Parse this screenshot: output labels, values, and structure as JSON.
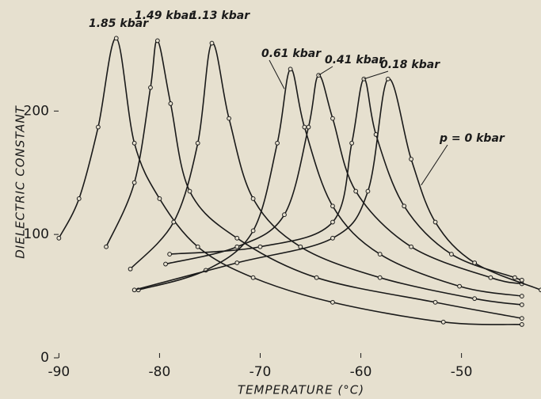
{
  "chart_data": {
    "type": "line",
    "x_label": "TEMPERATURE (°C)",
    "y_label": "DIELECTRIC CONSTANT",
    "xlim": [
      -90.5,
      -42.1
    ],
    "ylim": [
      0,
      290
    ],
    "xticks": [
      -90,
      -80,
      -70,
      -60,
      -50
    ],
    "yticks": [
      0,
      100,
      200
    ],
    "color": "#1a1a1a",
    "series": [
      {
        "name": "1.85 kbar",
        "x": [
          -90,
          -88,
          -86.1,
          -84.3,
          -82.5,
          -80,
          -76.2,
          -70.7,
          -62.8,
          -51.8,
          -44
        ],
        "values": [
          97,
          129,
          187,
          259,
          174,
          129,
          90,
          65,
          45,
          29,
          27
        ]
      },
      {
        "name": "1.49 kbar",
        "x": [
          -85.3,
          -82.5,
          -80.9,
          -80.2,
          -78.9,
          -77,
          -72.3,
          -64.4,
          -52.6,
          -44
        ],
        "values": [
          90,
          142,
          219,
          257,
          206,
          135,
          97,
          65,
          45,
          32
        ]
      },
      {
        "name": "1.13 kbar",
        "x": [
          -82.9,
          -78.6,
          -76.2,
          -74.8,
          -73.1,
          -70.7,
          -66,
          -58.1,
          -48.7,
          -44
        ],
        "values": [
          72,
          110,
          174,
          255,
          194,
          129,
          90,
          65,
          48,
          43
        ]
      },
      {
        "name": "0.61 kbar",
        "x": [
          -82.1,
          -75.4,
          -70.7,
          -68.3,
          -67,
          -65.6,
          -62.8,
          -58.1,
          -50.2,
          -44
        ],
        "values": [
          55,
          71,
          103,
          174,
          234,
          187,
          123,
          84,
          58,
          50
        ]
      },
      {
        "name": "0.41 kbar",
        "x": [
          -79.4,
          -72.3,
          -67.6,
          -65.2,
          -64.2,
          -62.8,
          -60.5,
          -55,
          -47.1,
          -44
        ],
        "values": [
          76,
          90,
          116,
          187,
          229,
          194,
          135,
          90,
          65,
          60
        ]
      },
      {
        "name": "0.18 kbar",
        "x": [
          -79,
          -70,
          -62.8,
          -60.9,
          -59.7,
          -58.5,
          -55.7,
          -51,
          -44.7,
          -44
        ],
        "values": [
          84,
          90,
          110,
          174,
          226,
          181,
          123,
          84,
          65,
          63
        ]
      },
      {
        "name": "p = 0 kbar",
        "x": [
          -82.5,
          -72.3,
          -62.8,
          -59.3,
          -57.3,
          -55,
          -52.6,
          -48.7,
          -42.1
        ],
        "values": [
          55,
          77,
          97,
          135,
          226,
          161,
          110,
          77,
          55
        ]
      }
    ]
  }
}
